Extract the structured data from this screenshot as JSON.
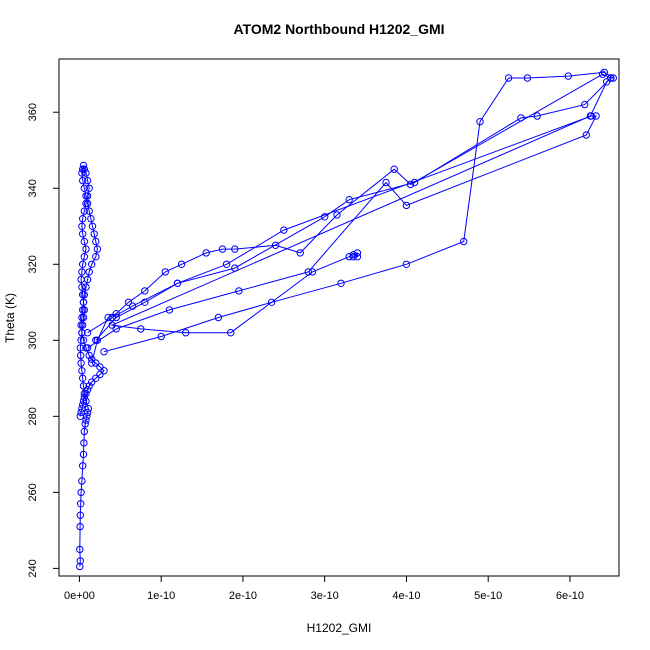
{
  "chart_data": {
    "type": "line",
    "title": "ATOM2 Northbound H1202_GMI",
    "xlabel": "H1202_GMI",
    "ylabel": "Theta (K)",
    "xlim": [
      -2.5e-11,
      6.6e-10
    ],
    "ylim": [
      238,
      374
    ],
    "xticks": [
      0,
      1e-10,
      2e-10,
      3e-10,
      4e-10,
      5e-10,
      6e-10
    ],
    "xtick_labels": [
      "0e+00",
      "1e-10",
      "2e-10",
      "3e-10",
      "4e-10",
      "5e-10",
      "6e-10"
    ],
    "yticks": [
      240,
      260,
      280,
      300,
      320,
      340,
      360
    ],
    "ytick_labels": [
      "240",
      "260",
      "280",
      "300",
      "320",
      "340",
      "360"
    ],
    "grid": false,
    "legend": "none",
    "series_color": "#0000ff",
    "markers": "open-circle",
    "series": [
      {
        "x": [
          5e-13,
          1e-12,
          5e-13,
          8e-13,
          1e-12,
          1.5e-12,
          2e-12,
          3e-12,
          4e-12,
          5e-12,
          5.5e-12,
          6e-12,
          7e-12,
          8e-12,
          9e-12,
          1e-11,
          1.1e-11,
          8e-12,
          6e-12,
          5e-12,
          4e-12,
          3e-12,
          2e-12,
          1.5e-12,
          1e-12,
          2e-12,
          3e-12,
          4e-12,
          5e-12,
          6e-12,
          5e-12,
          4e-12,
          3e-12,
          2e-12,
          3e-12,
          4e-12,
          6e-12,
          8e-12,
          6e-12,
          4e-12,
          3e-12,
          4e-12,
          6e-12,
          8e-12,
          1e-11,
          1.2e-11,
          1e-11,
          8e-12,
          6e-12,
          5e-12,
          4e-12,
          3e-12,
          4e-12,
          6e-12,
          8e-12,
          1e-11,
          1.2e-11,
          1.4e-11,
          1.6e-11,
          1.8e-11,
          2e-11,
          2.2e-11,
          2e-11,
          1.5e-11,
          1.2e-11,
          1e-11,
          8e-12,
          6e-12,
          5e-12,
          4e-12,
          3e-12,
          2e-12,
          3e-12,
          5e-12,
          8e-12,
          1.2e-11,
          1.5e-11,
          2e-11,
          2.5e-11,
          3e-11,
          2.5e-11,
          2e-11,
          1.5e-11,
          1.2e-11,
          1e-11,
          8e-12,
          6e-12,
          5e-12,
          4e-12,
          3e-12,
          2e-12,
          1e-12
        ],
        "y": [
          240.5,
          242,
          245,
          251,
          254,
          257,
          260,
          263,
          267,
          270,
          273,
          276,
          278,
          279,
          280,
          281,
          282,
          284,
          286,
          288,
          290,
          292,
          294,
          296,
          298,
          300,
          302,
          304,
          306,
          308,
          310,
          312,
          314,
          316,
          318,
          320,
          322,
          324,
          326,
          328,
          330,
          332,
          334,
          336,
          338,
          340,
          342,
          344,
          345,
          346,
          345,
          344,
          342,
          340,
          338,
          336,
          334,
          332,
          330,
          328,
          326,
          324,
          322,
          320,
          318,
          316,
          314,
          312,
          310,
          308,
          306,
          304,
          302,
          300,
          298,
          296,
          295,
          294,
          293,
          292,
          291,
          290,
          289,
          288,
          287,
          286,
          285,
          284,
          283,
          282,
          281,
          280
        ]
      },
      {
        "x": [
          1.5e-11,
          2.2e-11,
          3.5e-11,
          4.5e-11,
          6e-11,
          8e-11,
          1.05e-10,
          1.25e-10,
          1.55e-10,
          1.75e-10,
          1.9e-10,
          2.4e-10,
          2.7e-10,
          3.15e-10,
          3.85e-10,
          4.05e-10,
          6.4e-10,
          6.5e-10,
          6.45e-10,
          6.25e-10,
          4e-11,
          7.5e-11,
          1.3e-10,
          1.85e-10,
          2.85e-10,
          3.3e-10,
          3.35e-10,
          3.4e-10,
          3.4e-10,
          3.35e-10
        ],
        "y": [
          294,
          300,
          306,
          307,
          310,
          313,
          318,
          320,
          323,
          324,
          324,
          325,
          323,
          333,
          345,
          341,
          370,
          369,
          368,
          359,
          304,
          303,
          302,
          302,
          318,
          322,
          322.5,
          323,
          322,
          322
        ]
      },
      {
        "x": [
          3e-11,
          1e-10,
          1.7e-10,
          2.35e-10,
          3.2e-10,
          4e-10,
          4.7e-10,
          4.9e-10,
          5.25e-10,
          5.48e-10,
          5.98e-10,
          6.42e-10,
          6.53e-10,
          6.5e-10,
          6.18e-10,
          5.6e-10,
          5.4e-10,
          4.1e-10,
          3.3e-10,
          3e-10,
          1.9e-10,
          1.2e-10,
          6.5e-11,
          4e-11,
          1e-11
        ],
        "y": [
          297,
          301,
          306,
          310,
          315,
          320,
          326,
          357.5,
          369,
          369,
          369.5,
          370.5,
          369,
          369,
          362,
          359,
          358.5,
          341.5,
          337,
          332.5,
          319,
          315,
          309,
          306,
          302
        ]
      },
      {
        "x": [
          1e-11,
          4.5e-11,
          1.1e-10,
          1.95e-10,
          2.8e-10,
          3.75e-10,
          4e-10,
          6.2e-10,
          6.32e-10,
          6.26e-10,
          2.5e-10,
          1.8e-10,
          1.2e-10,
          8e-11,
          4.5e-11,
          2e-11
        ],
        "y": [
          298,
          303,
          308,
          313,
          318,
          341.5,
          335.5,
          354,
          359,
          359,
          329,
          320,
          315,
          310,
          306,
          300
        ]
      }
    ]
  }
}
